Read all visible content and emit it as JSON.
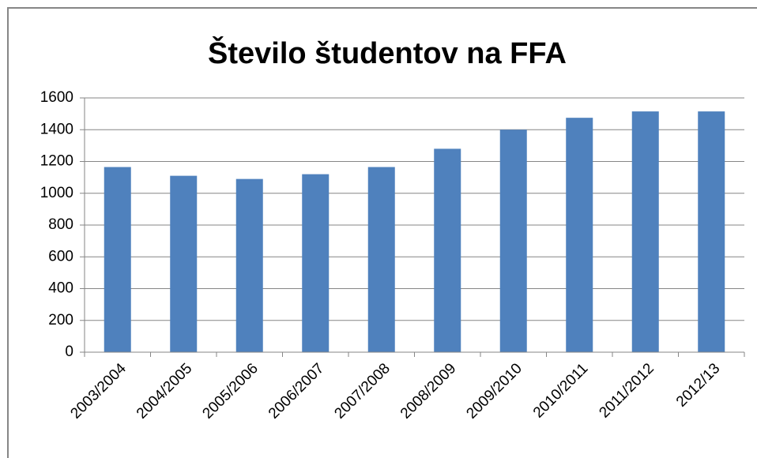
{
  "chart_data": {
    "type": "bar",
    "title": "Število študentov na FFA",
    "categories": [
      "2003/2004",
      "2004/2005",
      "2005/2006",
      "2006/2007",
      "2007/2008",
      "2008/2009",
      "2009/2010",
      "2010/2011",
      "2011/2012",
      "2012/13"
    ],
    "values": [
      1165,
      1110,
      1090,
      1120,
      1165,
      1280,
      1400,
      1475,
      1515,
      1515
    ],
    "color": "#4f81bd",
    "ylim": [
      0,
      1600
    ],
    "yticks": [
      0,
      200,
      400,
      600,
      800,
      1000,
      1200,
      1400,
      1600
    ],
    "grid": true
  }
}
